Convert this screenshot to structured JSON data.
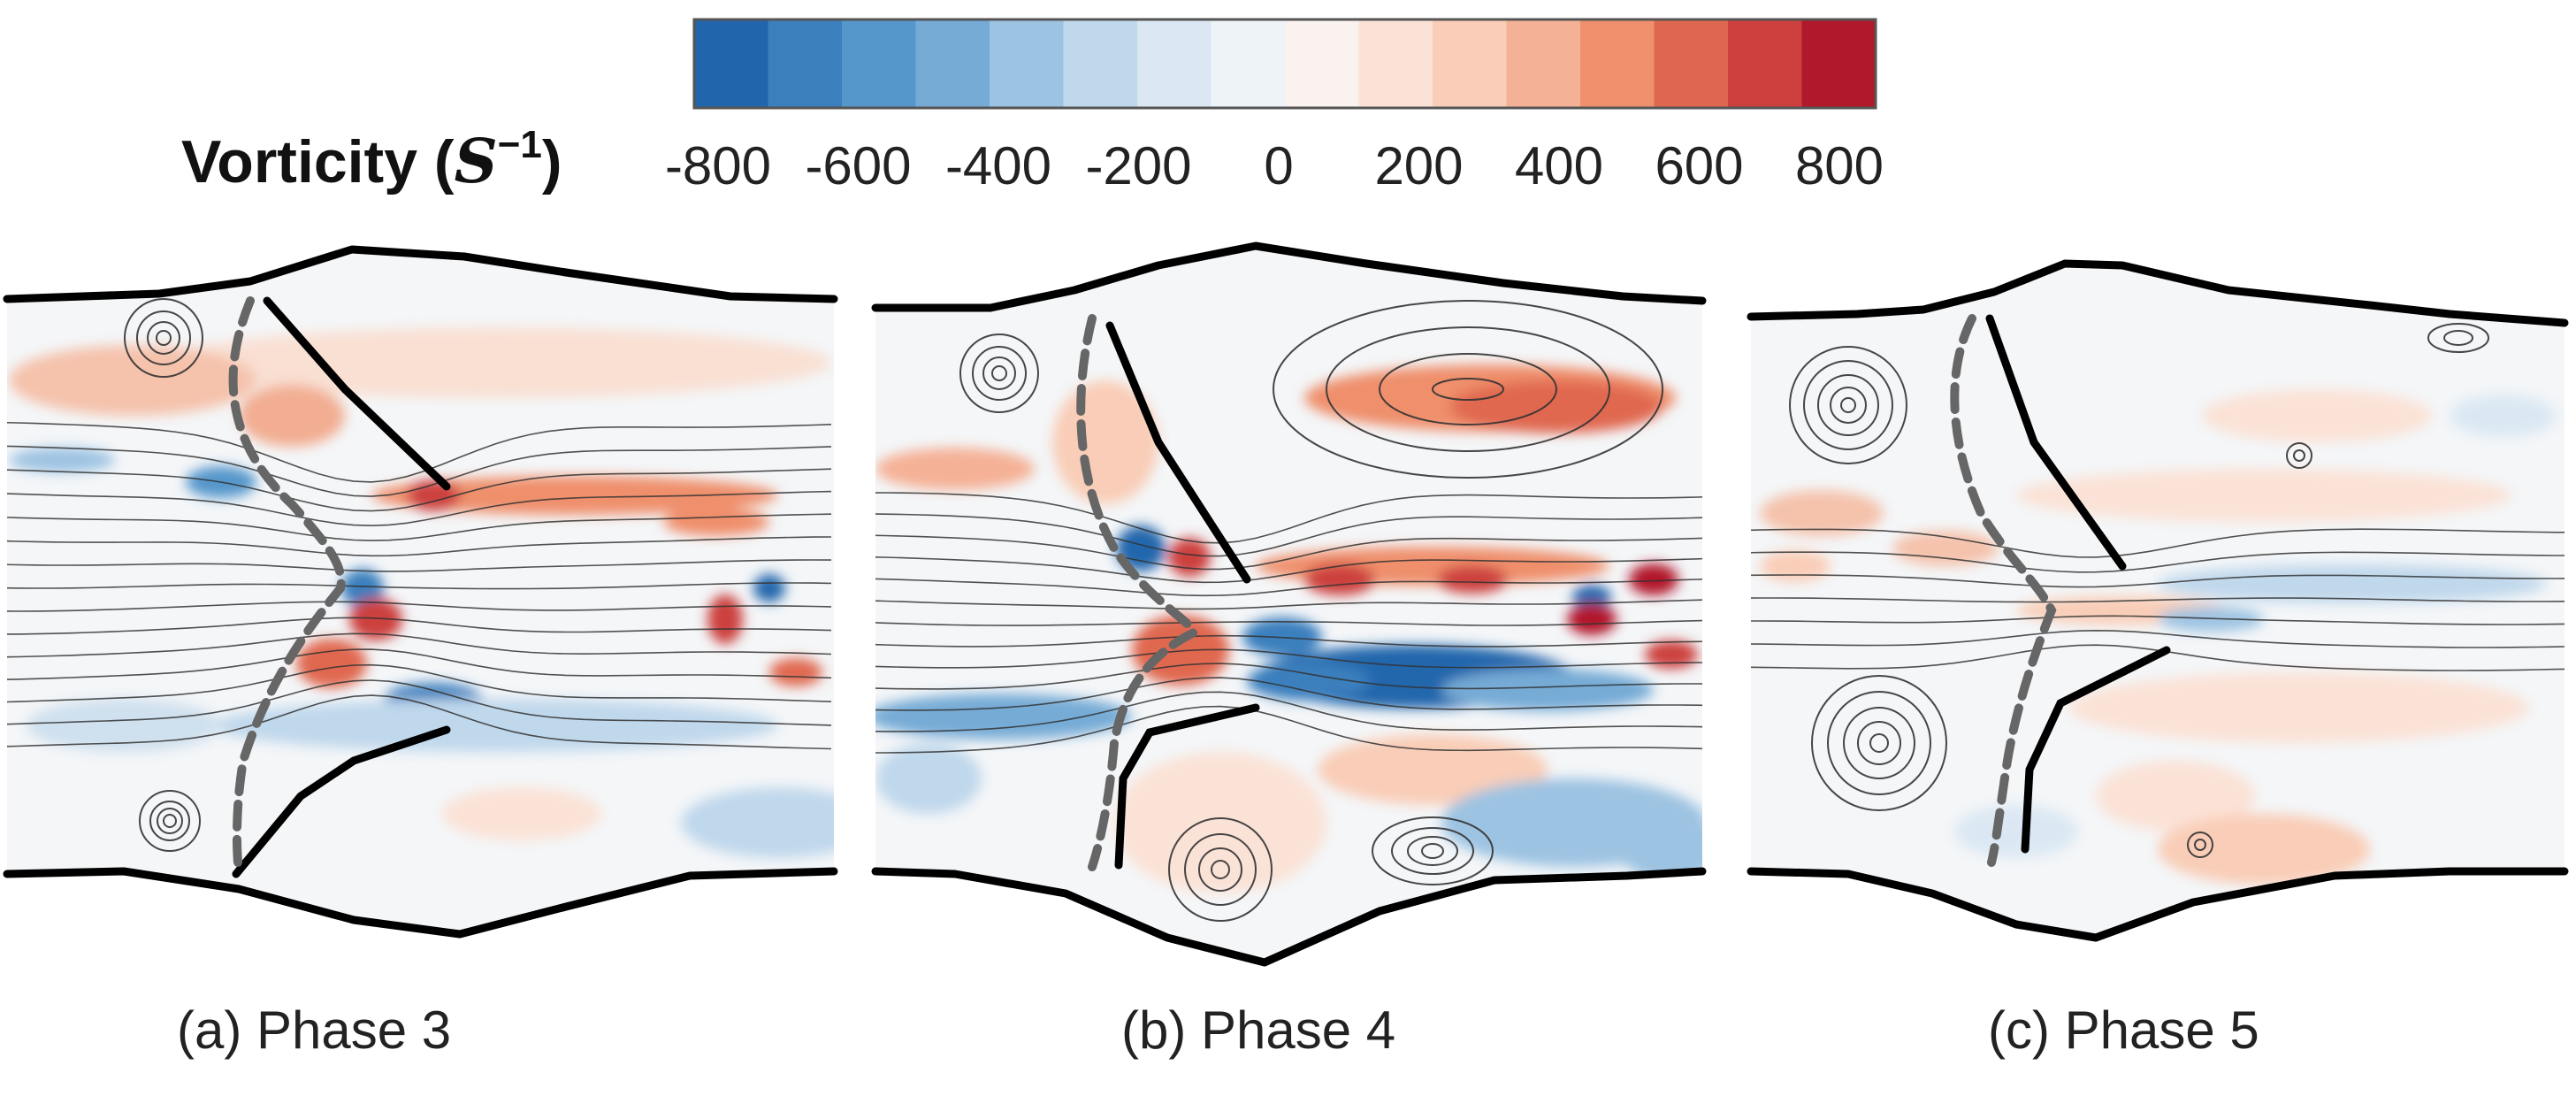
{
  "colorbar": {
    "title_text": "Vorticity (",
    "title_symbol": "S",
    "title_exponent": "−1",
    "title_close": ")",
    "ticks": [
      "-800",
      "-600",
      "-400",
      "-200",
      "0",
      "200",
      "400",
      "600",
      "800"
    ],
    "colors": [
      "#2166ac",
      "#3b7fbd",
      "#5596cb",
      "#76abd6",
      "#9cc3e2",
      "#c0d8ec",
      "#dbe8f3",
      "#eef3f8",
      "#f9f2ee",
      "#fbe2d6",
      "#f9cdb7",
      "#f5b196",
      "#ef8f6c",
      "#e0674f",
      "#cc3f3c",
      "#b2182b"
    ]
  },
  "panels": [
    {
      "id": "a",
      "caption": "(a) Phase 3"
    },
    {
      "id": "b",
      "caption": "(b) Phase 4"
    },
    {
      "id": "c",
      "caption": "(c) Phase 5"
    }
  ]
}
